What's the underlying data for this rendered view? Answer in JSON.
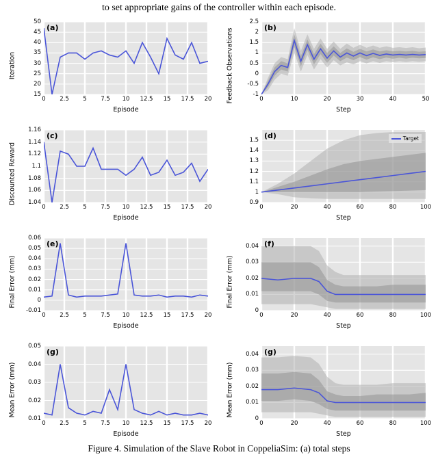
{
  "top_text": "to set appropriate gains of the controller within each episode.",
  "caption": "Figure 4.      Simulation of the Slave Robot in CoppeliaSim: (a) total steps",
  "defaults": {
    "line_color": "#4a55d8",
    "background_color": "#e5e5e5",
    "grid_color": "#ffffff",
    "text_color": "#000000",
    "band1_color": "#b0b0b0",
    "band1_opacity": 0.55,
    "band2_color": "#888888",
    "band2_opacity": 0.45,
    "tick_fontsize": 8.5,
    "label_fontsize": 9.5,
    "panel_label_fontsize": 11
  },
  "panels": [
    {
      "id": "a",
      "type": "line",
      "label": "(a)",
      "y_label": "Iteration",
      "x_label": "Episode",
      "xlim": [
        0,
        20
      ],
      "ylim": [
        15,
        50
      ],
      "xticks": [
        0.0,
        2.5,
        5.0,
        7.5,
        10.0,
        12.5,
        15.0,
        17.5,
        20.0
      ],
      "yticks": [
        15,
        20,
        25,
        30,
        35,
        40,
        45,
        50
      ],
      "x": [
        0,
        1,
        2,
        3,
        4,
        5,
        6,
        7,
        8,
        9,
        10,
        11,
        12,
        13,
        14,
        15,
        16,
        17,
        18,
        19,
        20
      ],
      "y": [
        47,
        15,
        33,
        35,
        35,
        32,
        35,
        36,
        34,
        33,
        36,
        30,
        40,
        33,
        25,
        42,
        34,
        32,
        40,
        30,
        31
      ]
    },
    {
      "id": "b",
      "type": "line_band",
      "label": "(b)",
      "y_label": "Feedback Observations",
      "x_label": "Step",
      "xlim": [
        0,
        50
      ],
      "ylim": [
        -1.0,
        2.5
      ],
      "xticks": [
        0,
        10,
        20,
        30,
        40,
        50
      ],
      "yticks": [
        -1.0,
        -0.5,
        0.0,
        0.5,
        1.0,
        1.5,
        2.0,
        2.5
      ],
      "x": [
        0,
        2,
        4,
        6,
        8,
        10,
        12,
        14,
        16,
        18,
        20,
        22,
        24,
        26,
        28,
        30,
        32,
        34,
        36,
        38,
        40,
        42,
        44,
        46,
        48,
        50
      ],
      "y": [
        -1.0,
        -0.5,
        0.1,
        0.4,
        0.3,
        1.6,
        0.6,
        1.4,
        0.7,
        1.2,
        0.75,
        1.1,
        0.8,
        1.0,
        0.85,
        1.0,
        0.87,
        0.98,
        0.88,
        0.95,
        0.9,
        0.93,
        0.9,
        0.93,
        0.9,
        0.92
      ],
      "band1_lo": [
        -1.0,
        -0.8,
        -0.3,
        0.0,
        -0.1,
        1.0,
        0.1,
        0.9,
        0.2,
        0.7,
        0.3,
        0.65,
        0.4,
        0.55,
        0.45,
        0.6,
        0.5,
        0.6,
        0.52,
        0.6,
        0.55,
        0.6,
        0.56,
        0.6,
        0.57,
        0.6
      ],
      "band1_hi": [
        -1.0,
        -0.2,
        0.5,
        0.8,
        0.7,
        2.2,
        1.1,
        1.9,
        1.2,
        1.7,
        1.2,
        1.55,
        1.2,
        1.45,
        1.25,
        1.4,
        1.25,
        1.36,
        1.25,
        1.32,
        1.25,
        1.28,
        1.24,
        1.28,
        1.23,
        1.26
      ],
      "band2_lo": [
        -1.0,
        -0.65,
        -0.1,
        0.2,
        0.1,
        1.3,
        0.35,
        1.15,
        0.45,
        0.95,
        0.52,
        0.88,
        0.6,
        0.78,
        0.65,
        0.8,
        0.68,
        0.79,
        0.7,
        0.78,
        0.72,
        0.77,
        0.73,
        0.77,
        0.74,
        0.76
      ],
      "band2_hi": [
        -1.0,
        -0.35,
        0.3,
        0.6,
        0.5,
        1.9,
        0.85,
        1.65,
        0.95,
        1.45,
        1.0,
        1.32,
        1.0,
        1.22,
        1.05,
        1.2,
        1.07,
        1.17,
        1.07,
        1.13,
        1.08,
        1.1,
        1.07,
        1.1,
        1.06,
        1.08
      ]
    },
    {
      "id": "c",
      "type": "line",
      "label": "(c)",
      "y_label": "Discounted Reward",
      "x_label": "Episode",
      "xlim": [
        0,
        20
      ],
      "ylim": [
        1.04,
        1.16
      ],
      "xticks": [
        0.0,
        2.5,
        5.0,
        7.5,
        10.0,
        12.5,
        15.0,
        17.5,
        20.0
      ],
      "yticks": [
        1.04,
        1.06,
        1.08,
        1.1,
        1.12,
        1.14,
        1.16
      ],
      "x": [
        0,
        1,
        2,
        3,
        4,
        5,
        6,
        7,
        8,
        9,
        10,
        11,
        12,
        13,
        14,
        15,
        16,
        17,
        18,
        19,
        20
      ],
      "y": [
        1.14,
        1.04,
        1.125,
        1.12,
        1.1,
        1.1,
        1.13,
        1.095,
        1.095,
        1.095,
        1.085,
        1.095,
        1.115,
        1.085,
        1.09,
        1.11,
        1.085,
        1.09,
        1.105,
        1.075,
        1.095
      ]
    },
    {
      "id": "d",
      "type": "line_band",
      "label": "(d)",
      "y_label": "",
      "x_label": "Step",
      "legend": "Target",
      "xlim": [
        0,
        100
      ],
      "ylim": [
        0.9,
        1.6
      ],
      "xticks": [
        0,
        20,
        40,
        60,
        80,
        100
      ],
      "yticks": [
        0.9,
        1.0,
        1.1,
        1.2,
        1.3,
        1.4,
        1.5
      ],
      "x": [
        0,
        10,
        20,
        30,
        40,
        50,
        60,
        70,
        80,
        90,
        100
      ],
      "y": [
        1.0,
        1.02,
        1.04,
        1.06,
        1.08,
        1.1,
        1.12,
        1.14,
        1.16,
        1.18,
        1.2
      ],
      "band1_lo": [
        1.0,
        0.98,
        0.95,
        0.94,
        0.935,
        0.935,
        0.935,
        0.935,
        0.935,
        0.935,
        0.935
      ],
      "band1_hi": [
        1.0,
        1.08,
        1.18,
        1.3,
        1.42,
        1.5,
        1.55,
        1.57,
        1.58,
        1.58,
        1.58
      ],
      "band2_lo": [
        1.0,
        1.0,
        1.0,
        1.0,
        1.0,
        1.0,
        1.0,
        1.005,
        1.01,
        1.015,
        1.02
      ],
      "band2_hi": [
        1.0,
        1.05,
        1.1,
        1.16,
        1.22,
        1.27,
        1.3,
        1.32,
        1.34,
        1.36,
        1.38
      ]
    },
    {
      "id": "e",
      "type": "line",
      "label": "(e)",
      "y_label": "Final Error (mm)",
      "x_label": "Episode",
      "xlim": [
        0,
        20
      ],
      "ylim": [
        -0.01,
        0.06
      ],
      "xticks": [
        0.0,
        2.5,
        5.0,
        7.5,
        10.0,
        12.5,
        15.0,
        17.5,
        20.0
      ],
      "yticks": [
        -0.01,
        0.0,
        0.01,
        0.02,
        0.03,
        0.04,
        0.05,
        0.06
      ],
      "x": [
        0,
        1,
        2,
        3,
        4,
        5,
        6,
        7,
        8,
        9,
        10,
        11,
        12,
        13,
        14,
        15,
        16,
        17,
        18,
        19,
        20
      ],
      "y": [
        0.003,
        0.004,
        0.055,
        0.005,
        0.003,
        0.004,
        0.004,
        0.004,
        0.005,
        0.006,
        0.055,
        0.005,
        0.004,
        0.004,
        0.005,
        0.003,
        0.004,
        0.004,
        0.003,
        0.005,
        0.004
      ]
    },
    {
      "id": "f",
      "type": "line_band",
      "label": "(f)",
      "y_label": "Final Error (mm)",
      "x_label": "Step",
      "xlim": [
        0,
        100
      ],
      "ylim": [
        0.0,
        0.045
      ],
      "xticks": [
        0,
        20,
        40,
        60,
        80,
        100
      ],
      "yticks": [
        0.0,
        0.01,
        0.02,
        0.03,
        0.04
      ],
      "x": [
        0,
        10,
        20,
        30,
        35,
        40,
        45,
        50,
        60,
        70,
        80,
        90,
        100
      ],
      "y": [
        0.02,
        0.019,
        0.02,
        0.02,
        0.018,
        0.012,
        0.01,
        0.01,
        0.01,
        0.01,
        0.01,
        0.01,
        0.01
      ],
      "band1_lo": [
        0.004,
        0.004,
        0.004,
        0.004,
        0.003,
        0.002,
        0.001,
        0.001,
        0.001,
        0.001,
        0.001,
        0.001,
        0.001
      ],
      "band1_hi": [
        0.04,
        0.04,
        0.04,
        0.04,
        0.037,
        0.028,
        0.024,
        0.022,
        0.022,
        0.022,
        0.022,
        0.022,
        0.022
      ],
      "band2_lo": [
        0.012,
        0.012,
        0.012,
        0.012,
        0.01,
        0.006,
        0.005,
        0.005,
        0.005,
        0.005,
        0.005,
        0.005,
        0.005
      ],
      "band2_hi": [
        0.03,
        0.03,
        0.03,
        0.03,
        0.027,
        0.019,
        0.016,
        0.015,
        0.015,
        0.015,
        0.016,
        0.016,
        0.016
      ]
    },
    {
      "id": "g1",
      "type": "line",
      "label": "(g)",
      "y_label": "Mean Error (mm)",
      "x_label": "Episode",
      "xlim": [
        0,
        20
      ],
      "ylim": [
        0.01,
        0.05
      ],
      "xticks": [
        0.0,
        2.5,
        5.0,
        7.5,
        10.0,
        12.5,
        15.0,
        17.5,
        20.0
      ],
      "yticks": [
        0.01,
        0.02,
        0.03,
        0.04,
        0.05
      ],
      "x": [
        0,
        1,
        2,
        3,
        4,
        5,
        6,
        7,
        8,
        9,
        10,
        11,
        12,
        13,
        14,
        15,
        16,
        17,
        18,
        19,
        20
      ],
      "y": [
        0.013,
        0.012,
        0.04,
        0.016,
        0.013,
        0.012,
        0.014,
        0.013,
        0.026,
        0.015,
        0.04,
        0.015,
        0.013,
        0.012,
        0.014,
        0.012,
        0.013,
        0.012,
        0.012,
        0.013,
        0.012
      ]
    },
    {
      "id": "g2",
      "type": "line_band",
      "label": "(g)",
      "y_label": "Mean Error (mm)",
      "x_label": "Step",
      "xlim": [
        0,
        100
      ],
      "ylim": [
        0.0,
        0.045
      ],
      "xticks": [
        0,
        20,
        40,
        60,
        80,
        100
      ],
      "yticks": [
        0.0,
        0.01,
        0.02,
        0.03,
        0.04
      ],
      "x": [
        0,
        10,
        20,
        30,
        35,
        40,
        45,
        50,
        60,
        70,
        80,
        90,
        100
      ],
      "y": [
        0.018,
        0.018,
        0.019,
        0.018,
        0.016,
        0.011,
        0.01,
        0.01,
        0.01,
        0.01,
        0.01,
        0.01,
        0.01
      ],
      "band1_lo": [
        0.004,
        0.004,
        0.004,
        0.004,
        0.003,
        0.002,
        0.001,
        0.001,
        0.001,
        0.001,
        0.001,
        0.001,
        0.001
      ],
      "band1_hi": [
        0.038,
        0.038,
        0.039,
        0.038,
        0.034,
        0.026,
        0.022,
        0.021,
        0.021,
        0.021,
        0.022,
        0.022,
        0.022
      ],
      "band2_lo": [
        0.011,
        0.011,
        0.012,
        0.011,
        0.009,
        0.006,
        0.005,
        0.005,
        0.005,
        0.005,
        0.005,
        0.005,
        0.005
      ],
      "band2_hi": [
        0.028,
        0.028,
        0.029,
        0.028,
        0.024,
        0.017,
        0.015,
        0.014,
        0.014,
        0.015,
        0.015,
        0.015,
        0.016
      ]
    }
  ]
}
